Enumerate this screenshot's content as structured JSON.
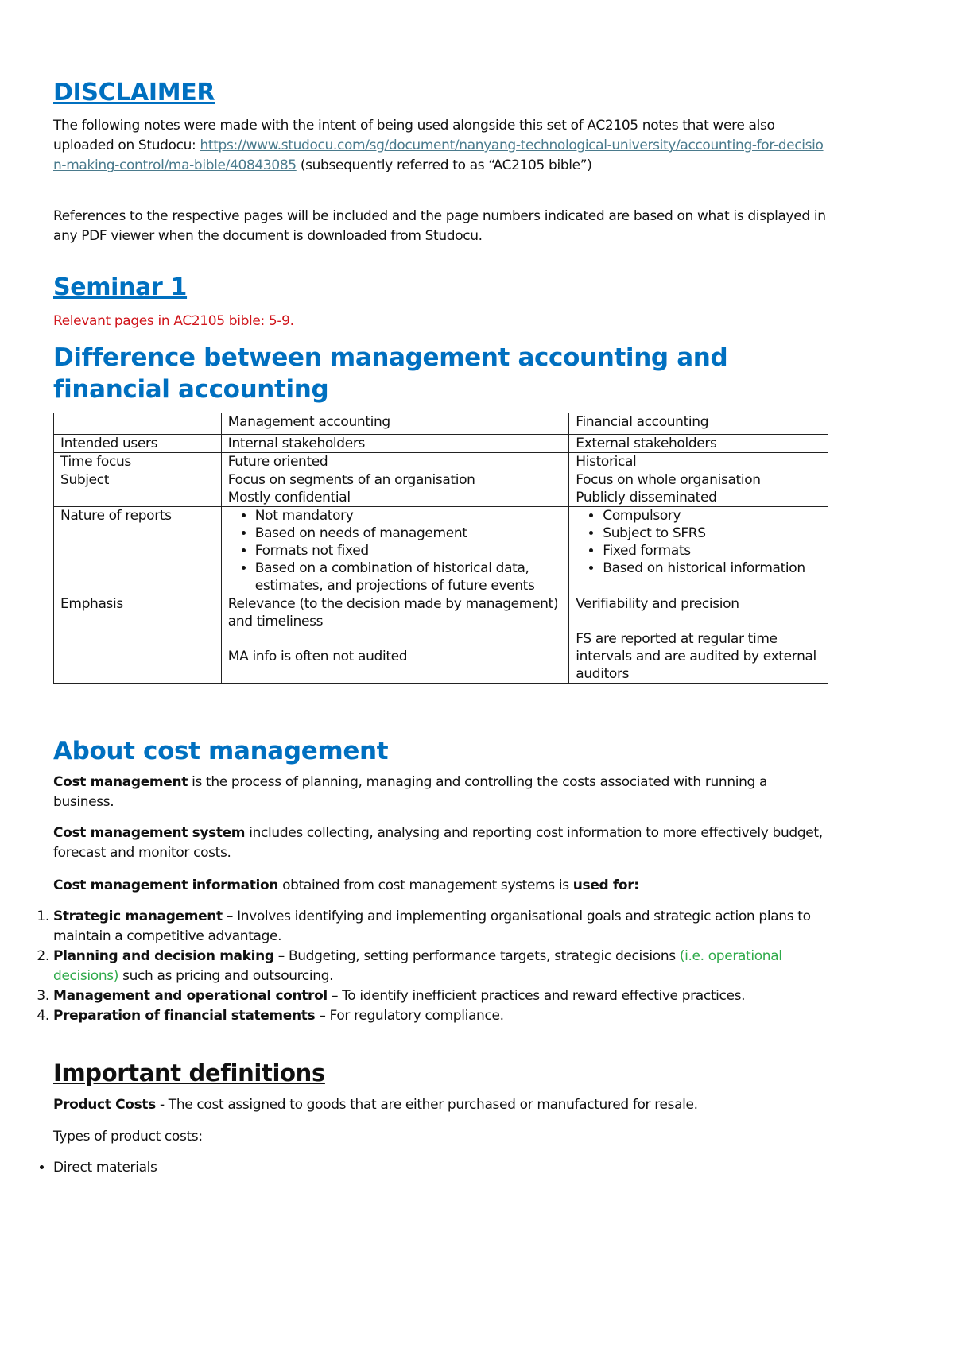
{
  "disclaimer": {
    "heading": "DISCLAIMER",
    "p1_before": "The following notes were made with the intent of being used alongside this set of AC2105 notes that were also uploaded on Studocu: ",
    "link": "https://www.studocu.com/sg/document/nanyang-technological-university/accounting-for-decision-making-control/ma-bible/40843085",
    "p1_after": " (subsequently referred to as “AC2105 bible”)",
    "p2": "References to the respective pages will be included and the page numbers indicated are based on what is displayed in any PDF viewer when the document is downloaded from Studocu."
  },
  "seminar": {
    "heading": "Seminar 1",
    "relevant": "Relevant pages in AC2105 bible: 5-9."
  },
  "difference": {
    "heading": "Difference between management accounting and financial accounting",
    "table": {
      "header": [
        "",
        "Management accounting",
        "Financial accounting"
      ],
      "rows": [
        {
          "label": "Intended users",
          "ma": "Internal stakeholders",
          "fa": "External stakeholders"
        },
        {
          "label": "Time focus",
          "ma": "Future oriented",
          "fa": "Historical"
        },
        {
          "label": "Subject",
          "ma_lines": [
            "Focus on segments of an organisation",
            "Mostly confidential"
          ],
          "fa_lines": [
            "Focus on whole organisation",
            "Publicly disseminated"
          ]
        },
        {
          "label": "Nature of reports",
          "ma_bullets": [
            "Not mandatory",
            "Based on needs of management",
            "Formats not fixed",
            "Based on a combination of historical data, estimates, and projections of future events"
          ],
          "fa_bullets": [
            "Compulsory",
            "Subject to SFRS",
            "Fixed formats",
            "Based on historical information"
          ]
        },
        {
          "label": "Emphasis",
          "ma_lines": [
            "Relevance (to the decision made by management) and timeliness",
            "MA info is often not audited"
          ],
          "fa_lines": [
            "Verifiability and precision",
            "FS are reported at regular time intervals and are audited by external auditors"
          ]
        }
      ]
    }
  },
  "cost": {
    "heading": "About cost management",
    "p1_bold": "Cost management",
    "p1": " is the process of planning, managing and controlling the costs associated with running a business.",
    "p2_bold": "Cost management system",
    "p2": " includes collecting, analysing and reporting cost information to more effectively budget, forecast and monitor costs.",
    "p3_bold": "Cost management information",
    "p3": " obtained from cost management systems is ",
    "p3_bold2": "used for:",
    "items": [
      {
        "bold": "Strategic management",
        "text": " – Involves identifying and implementing organisational goals and strategic action plans to maintain a competitive advantage."
      },
      {
        "bold": "Planning and decision making",
        "text": " – Budgeting, setting performance targets, strategic decisions ",
        "green": "(i.e. operational decisions)",
        "text2": " such as pricing and outsourcing."
      },
      {
        "bold": "Management and operational control",
        "text": " – To identify inefficient practices and reward effective practices."
      },
      {
        "bold": "Preparation of financial statements",
        "text": " – For regulatory compliance."
      }
    ]
  },
  "definitions": {
    "heading": "Important definitions",
    "product_bold": "Product Costs",
    "product_text": " - The cost assigned to goods that are either purchased or manufactured for resale.",
    "types_label": "Types of product costs:",
    "types": [
      "Direct materials"
    ]
  },
  "colors": {
    "heading_blue": "#0070c0",
    "red": "#d0141a",
    "green": "#2eaa4a",
    "link": "#4a7a8c"
  }
}
